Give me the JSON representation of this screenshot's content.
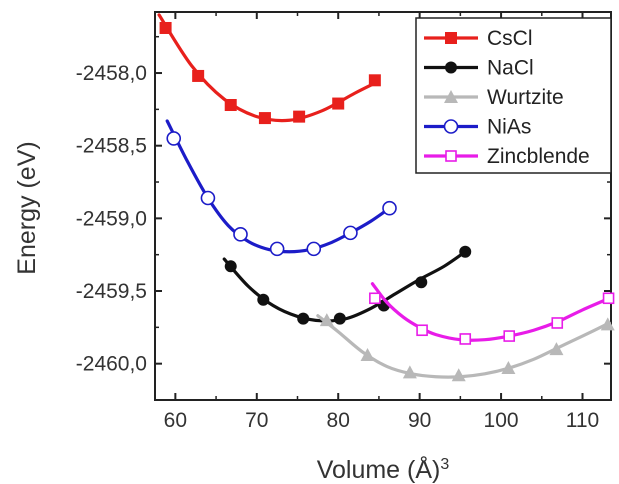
{
  "chart_data": {
    "type": "line",
    "title": "",
    "xlabel": "Volume (Å)",
    "xlabel_superscript": "3",
    "ylabel": "Energy (eV)",
    "xlim": [
      57.5,
      113.5
    ],
    "ylim": [
      -2460.25,
      -2457.58
    ],
    "x_ticks": [
      60,
      70,
      80,
      90,
      100,
      110
    ],
    "x_tick_labels": [
      "60",
      "70",
      "80",
      "90",
      "100",
      "110"
    ],
    "y_ticks": [
      -2458.0,
      -2458.5,
      -2459.0,
      -2459.5,
      -2460.0
    ],
    "y_tick_labels": [
      "-2458,0",
      "-2458,5",
      "-2459,0",
      "-2459,5",
      "-2460,0"
    ],
    "grid": false,
    "legend_position": "top-right",
    "series": [
      {
        "name": "CsCl",
        "color": "#e8201c",
        "marker": "square-filled",
        "points": [
          [
            58.8,
            -2457.69
          ],
          [
            62.8,
            -2458.02
          ],
          [
            66.8,
            -2458.22
          ],
          [
            71.0,
            -2458.31
          ],
          [
            75.2,
            -2458.3
          ],
          [
            80.0,
            -2458.21
          ],
          [
            84.5,
            -2458.05
          ]
        ],
        "fit": [
          [
            58.0,
            -2457.6
          ],
          [
            62.0,
            -2457.95
          ],
          [
            66.0,
            -2458.18
          ],
          [
            70.0,
            -2458.3
          ],
          [
            74.0,
            -2458.325
          ],
          [
            78.0,
            -2458.26
          ],
          [
            82.0,
            -2458.14
          ],
          [
            84.5,
            -2458.07
          ]
        ]
      },
      {
        "name": "NaCl",
        "color": "#111111",
        "marker": "circle-filled",
        "points": [
          [
            66.8,
            -2459.33
          ],
          [
            70.8,
            -2459.56
          ],
          [
            75.7,
            -2459.69
          ],
          [
            80.2,
            -2459.69
          ],
          [
            85.6,
            -2459.6
          ],
          [
            90.2,
            -2459.44
          ],
          [
            95.6,
            -2459.23
          ]
        ],
        "fit": [
          [
            66.0,
            -2459.28
          ],
          [
            69.0,
            -2459.47
          ],
          [
            72.0,
            -2459.6
          ],
          [
            75.0,
            -2459.675
          ],
          [
            78.0,
            -2459.705
          ],
          [
            81.0,
            -2459.69
          ],
          [
            84.0,
            -2459.62
          ],
          [
            87.0,
            -2459.52
          ],
          [
            90.0,
            -2459.42
          ],
          [
            93.0,
            -2459.33
          ],
          [
            95.6,
            -2459.23
          ]
        ]
      },
      {
        "name": "Wurtzite",
        "color": "#b8b8b8",
        "marker": "triangle-filled",
        "points": [
          [
            78.6,
            -2459.7
          ],
          [
            83.6,
            -2459.94
          ],
          [
            88.8,
            -2460.06
          ],
          [
            94.8,
            -2460.08
          ],
          [
            100.9,
            -2460.03
          ],
          [
            106.8,
            -2459.9
          ],
          [
            113.1,
            -2459.73
          ]
        ],
        "fit": [
          [
            77.5,
            -2459.67
          ],
          [
            80.0,
            -2459.78
          ],
          [
            83.0,
            -2459.92
          ],
          [
            86.0,
            -2460.02
          ],
          [
            89.0,
            -2460.07
          ],
          [
            92.0,
            -2460.09
          ],
          [
            95.0,
            -2460.09
          ],
          [
            98.0,
            -2460.07
          ],
          [
            101.0,
            -2460.03
          ],
          [
            104.0,
            -2459.97
          ],
          [
            107.0,
            -2459.89
          ],
          [
            110.0,
            -2459.81
          ],
          [
            113.3,
            -2459.72
          ]
        ]
      },
      {
        "name": "NiAs",
        "color": "#1c1cc8",
        "marker": "circle-open",
        "points": [
          [
            59.8,
            -2458.45
          ],
          [
            64.0,
            -2458.86
          ],
          [
            68.0,
            -2459.11
          ],
          [
            72.5,
            -2459.21
          ],
          [
            77.0,
            -2459.21
          ],
          [
            81.5,
            -2459.1
          ],
          [
            86.3,
            -2458.93
          ]
        ],
        "fit": [
          [
            59.0,
            -2458.33
          ],
          [
            61.5,
            -2458.61
          ],
          [
            64.0,
            -2458.86
          ],
          [
            66.5,
            -2459.05
          ],
          [
            69.0,
            -2459.16
          ],
          [
            71.5,
            -2459.215
          ],
          [
            74.0,
            -2459.23
          ],
          [
            76.5,
            -2459.215
          ],
          [
            79.0,
            -2459.17
          ],
          [
            81.5,
            -2459.1
          ],
          [
            84.0,
            -2459.02
          ],
          [
            86.3,
            -2458.93
          ]
        ]
      },
      {
        "name": "Zincblende",
        "color": "#e81ce8",
        "marker": "square-open",
        "points": [
          [
            84.5,
            -2459.55
          ],
          [
            90.3,
            -2459.77
          ],
          [
            95.6,
            -2459.83
          ],
          [
            101.0,
            -2459.81
          ],
          [
            106.9,
            -2459.72
          ],
          [
            113.2,
            -2459.55
          ]
        ],
        "fit": [
          [
            84.2,
            -2459.45
          ],
          [
            86.0,
            -2459.58
          ],
          [
            88.0,
            -2459.68
          ],
          [
            90.0,
            -2459.75
          ],
          [
            92.0,
            -2459.8
          ],
          [
            95.0,
            -2459.835
          ],
          [
            98.0,
            -2459.835
          ],
          [
            101.0,
            -2459.81
          ],
          [
            104.0,
            -2459.77
          ],
          [
            107.0,
            -2459.71
          ],
          [
            110.0,
            -2459.63
          ],
          [
            113.3,
            -2459.55
          ]
        ]
      }
    ]
  }
}
